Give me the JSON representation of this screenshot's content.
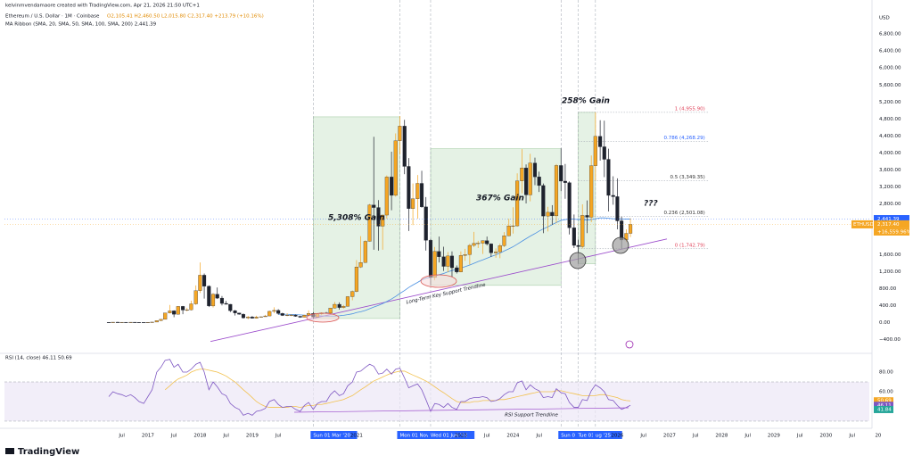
{
  "chart_data": {
    "type": "candlestick",
    "credit": "kelvinmvendamaore created with TradingView.com, Apr 21, 2026 21:50 UTC+1",
    "symbol_line": "Ethereum / U.S. Dollar · 1M · Coinbase",
    "ohlc_line": "O2,105.41 H2,460.50 L2,015.80 C2,317.40 +213.79 (+10.16%)",
    "ma_line": "MA Ribbon (SMA, 20, SMA, 50, SMA, 100, SMA, 200) 2,441.39",
    "currency": "USD",
    "up_color": "#f5a623",
    "down_color": "#1e222d",
    "xlim": [
      2014.25,
      2030.83
    ],
    "ylim": [
      -700,
      7350
    ],
    "grid": false,
    "candles": {
      "x": [
        2016.25,
        2016.33,
        2016.42,
        2016.5,
        2016.58,
        2016.67,
        2016.75,
        2016.83,
        2016.92,
        2017,
        2017.08,
        2017.17,
        2017.25,
        2017.33,
        2017.42,
        2017.5,
        2017.58,
        2017.67,
        2017.75,
        2017.83,
        2017.92,
        2018,
        2018.08,
        2018.17,
        2018.25,
        2018.33,
        2018.42,
        2018.5,
        2018.58,
        2018.67,
        2018.75,
        2018.83,
        2018.92,
        2019,
        2019.08,
        2019.17,
        2019.25,
        2019.33,
        2019.42,
        2019.5,
        2019.58,
        2019.67,
        2019.75,
        2019.83,
        2019.92,
        2020,
        2020.08,
        2020.17,
        2020.25,
        2020.33,
        2020.42,
        2020.5,
        2020.58,
        2020.67,
        2020.75,
        2020.83,
        2020.92,
        2021,
        2021.08,
        2021.17,
        2021.25,
        2021.33,
        2021.42,
        2021.5,
        2021.58,
        2021.67,
        2021.75,
        2021.83,
        2021.92,
        2022,
        2022.08,
        2022.17,
        2022.25,
        2022.33,
        2022.42,
        2022.5,
        2022.58,
        2022.67,
        2022.75,
        2022.83,
        2022.92,
        2023,
        2023.08,
        2023.17,
        2023.25,
        2023.33,
        2023.42,
        2023.5,
        2023.58,
        2023.67,
        2023.75,
        2023.83,
        2023.92,
        2024,
        2024.08,
        2024.17,
        2024.25,
        2024.33,
        2024.42,
        2024.5,
        2024.58,
        2024.67,
        2024.75,
        2024.83,
        2024.92,
        2025,
        2025.08,
        2025.17,
        2025.25,
        2025.33,
        2025.42,
        2025.5,
        2025.58,
        2025.67,
        2025.75,
        2025.83,
        2025.92,
        2026,
        2026.08,
        2026.17,
        2026.25
      ],
      "open": [
        11,
        9,
        14,
        12,
        12,
        11,
        13,
        11,
        9,
        8,
        11,
        16,
        50,
        80,
        230,
        280,
        200,
        385,
        300,
        305,
        445,
        755,
        1120,
        860,
        395,
        670,
        580,
        455,
        435,
        285,
        230,
        200,
        115,
        135,
        107,
        135,
        141,
        160,
        268,
        290,
        218,
        172,
        180,
        182,
        152,
        130,
        179,
        218,
        133,
        206,
        231,
        226,
        345,
        434,
        359,
        386,
        615,
        737,
        1314,
        1419,
        1918,
        2773,
        2714,
        2275,
        2536,
        3433,
        3001,
        4288,
        4631,
        3683,
        2688,
        2919,
        3283,
        2729,
        1942,
        1067,
        1679,
        1553,
        1328,
        1573,
        1296,
        1196,
        1585,
        1605,
        1822,
        1870,
        1875,
        1934,
        1857,
        1646,
        1671,
        1815,
        2047,
        2282,
        2283,
        3340,
        3646,
        3012,
        3762,
        3437,
        3232,
        2513,
        2602,
        2518,
        3704,
        3336,
        3300,
        2237,
        1822,
        1793,
        2528,
        2486,
        3698,
        4390,
        4145,
        3850,
        3000,
        2970,
        2400,
        1950,
        2105.41
      ],
      "high": [
        12,
        15,
        21,
        15,
        12,
        14,
        14,
        12,
        9,
        12,
        17,
        55,
        80,
        232,
        420,
        294,
        390,
        395,
        352,
        520,
        880,
        1420,
        1160,
        880,
        700,
        830,
        630,
        515,
        440,
        300,
        235,
        220,
        160,
        160,
        165,
        145,
        185,
        285,
        365,
        320,
        235,
        225,
        200,
        195,
        155,
        185,
        290,
        253,
        225,
        245,
        255,
        350,
        490,
        480,
        420,
        625,
        760,
        1475,
        2040,
        1945,
        2800,
        4380,
        2890,
        2550,
        3470,
        4030,
        4460,
        4870,
        4780,
        3880,
        3280,
        3480,
        3580,
        2960,
        1975,
        1785,
        2030,
        1790,
        1665,
        1680,
        1350,
        1680,
        1740,
        1860,
        2140,
        1930,
        1940,
        2030,
        1870,
        1750,
        1865,
        2135,
        2450,
        2720,
        3520,
        4090,
        3730,
        3980,
        3890,
        3560,
        3280,
        2730,
        2770,
        3740,
        4110,
        3740,
        3330,
        2550,
        1960,
        2790,
        2880,
        3940,
        4955.9,
        4770,
        4760,
        4100,
        3450,
        3400,
        2500,
        2200,
        2460.5
      ],
      "low": [
        7,
        9,
        11,
        10,
        10,
        11,
        10,
        8,
        6,
        8,
        10,
        16,
        42,
        78,
        220,
        130,
        190,
        200,
        270,
        290,
        420,
        700,
        570,
        370,
        360,
        560,
        410,
        430,
        250,
        170,
        190,
        100,
        82,
        100,
        102,
        124,
        140,
        155,
        225,
        190,
        160,
        155,
        155,
        140,
        117,
        127,
        175,
        90,
        130,
        180,
        215,
        220,
        335,
        310,
        335,
        380,
        530,
        715,
        1290,
        1410,
        1910,
        1720,
        1700,
        1720,
        2450,
        2650,
        2970,
        3970,
        3500,
        2160,
        2300,
        2450,
        2710,
        1700,
        880,
        1000,
        1420,
        1220,
        1190,
        1075,
        1160,
        1190,
        1460,
        1370,
        1780,
        1760,
        1620,
        1820,
        1550,
        1530,
        1520,
        1780,
        2040,
        2100,
        2260,
        3050,
        2810,
        2860,
        3240,
        3080,
        2110,
        2150,
        2310,
        2350,
        3100,
        2920,
        2080,
        1760,
        1390,
        1750,
        2110,
        2370,
        3350,
        3820,
        3430,
        2620,
        2780,
        2200,
        1742.79,
        1900,
        2015.8
      ],
      "close": [
        9,
        14,
        12,
        12,
        11,
        13,
        11,
        9,
        8,
        11,
        16,
        50,
        80,
        230,
        280,
        200,
        385,
        300,
        305,
        445,
        755,
        1120,
        860,
        395,
        670,
        580,
        455,
        435,
        285,
        230,
        200,
        115,
        135,
        107,
        135,
        141,
        160,
        268,
        290,
        218,
        172,
        180,
        182,
        152,
        130,
        179,
        218,
        133,
        206,
        231,
        226,
        345,
        434,
        359,
        386,
        615,
        737,
        1314,
        1419,
        1918,
        2773,
        2714,
        2275,
        2536,
        3433,
        3001,
        4288,
        4631,
        3683,
        2688,
        2919,
        3283,
        2729,
        1942,
        1067,
        1679,
        1553,
        1328,
        1573,
        1296,
        1196,
        1585,
        1605,
        1822,
        1870,
        1875,
        1934,
        1857,
        1646,
        1671,
        1815,
        2047,
        2282,
        2283,
        3340,
        3646,
        3012,
        3762,
        3437,
        3232,
        2513,
        2602,
        2518,
        3704,
        3336,
        3300,
        2237,
        1822,
        1793,
        2528,
        2486,
        3698,
        4390,
        4145,
        3850,
        3000,
        2970,
        2400,
        1950,
        2105.41,
        2317.4
      ]
    },
    "ma_ribbon": {
      "color": "#4a90e2",
      "values": [
        null,
        null,
        null,
        null,
        null,
        null,
        null,
        null,
        null,
        null,
        null,
        null,
        null,
        null,
        null,
        null,
        null,
        null,
        null,
        null,
        null,
        null,
        null,
        null,
        null,
        null,
        null,
        null,
        null,
        null,
        null,
        null,
        null,
        null,
        null,
        null,
        null,
        null,
        null,
        200,
        200,
        198,
        195,
        190,
        185,
        180,
        175,
        170,
        165,
        160,
        158,
        156,
        158,
        165,
        175,
        190,
        210,
        240,
        260,
        290,
        330,
        370,
        410,
        450,
        500,
        560,
        620,
        690,
        760,
        830,
        890,
        950,
        1010,
        1050,
        1070,
        1100,
        1130,
        1160,
        1200,
        1230,
        1260,
        1290,
        1320,
        1360,
        1400,
        1440,
        1480,
        1520,
        1560,
        1600,
        1640,
        1690,
        1740,
        1790,
        1850,
        1920,
        1980,
        2040,
        2100,
        2160,
        2210,
        2260,
        2310,
        2360,
        2410,
        2430,
        2440,
        2440,
        2430,
        2430,
        2420,
        2430,
        2450,
        2470,
        2470,
        2460,
        2450,
        2450,
        2445,
        2443,
        2441.39
      ]
    },
    "yticks": [
      {
        "value": 6800,
        "label": "6,800.00"
      },
      {
        "value": 6400,
        "label": "6,400.00"
      },
      {
        "value": 6000,
        "label": "6,000.00"
      },
      {
        "value": 5600,
        "label": "5,600.00"
      },
      {
        "value": 5200,
        "label": "5,200.00"
      },
      {
        "value": 4800,
        "label": "4,800.00"
      },
      {
        "value": 4400,
        "label": "4,400.00"
      },
      {
        "value": 4000,
        "label": "4,000.00"
      },
      {
        "value": 3600,
        "label": "3,600.00"
      },
      {
        "value": 3200,
        "label": "3,200.00"
      },
      {
        "value": 2800,
        "label": "2,800.00"
      },
      {
        "value": 1600,
        "label": "1,600.00"
      },
      {
        "value": 1200,
        "label": "1,200.00"
      },
      {
        "value": 800,
        "label": "800.00"
      },
      {
        "value": 400,
        "label": "400.00"
      },
      {
        "value": 0,
        "label": "0.00"
      },
      {
        "value": -400,
        "label": "−400.00"
      }
    ],
    "xticks": [
      {
        "value": 2016.5,
        "label": "Jul"
      },
      2017,
      {
        "value": 2017.5,
        "label": "Jul"
      },
      2018,
      {
        "value": 2018.5,
        "label": "Jul"
      },
      2019,
      {
        "value": 2019.5,
        "label": "Jul"
      },
      2021,
      2023,
      {
        "value": 2023.5,
        "label": "Jul"
      },
      2024,
      {
        "value": 2024.5,
        "label": "Jul"
      },
      2026,
      {
        "value": 2026.5,
        "label": "Jul"
      },
      2027,
      {
        "value": 2027.5,
        "label": "Jul"
      },
      2028,
      {
        "value": 2028.5,
        "label": "Jul"
      },
      2029,
      {
        "value": 2029.5,
        "label": "Jul"
      },
      2030,
      {
        "value": 2030.5,
        "label": "Jul"
      },
      {
        "value": 2031,
        "label": "20"
      }
    ],
    "markers": [
      {
        "x": 2020.17,
        "label": "Sun 01 Mar '20"
      },
      {
        "x": 2021.83,
        "label": "Mon 01 Nov"
      },
      {
        "x": 2022.42,
        "label": "Wed 01 Jun '22"
      },
      {
        "x": 2024.92,
        "label": "Sun 01"
      },
      {
        "x": 2025.25,
        "label": "Tue 01 Apr '25"
      },
      {
        "x": 2025.58,
        "label": "ug '25"
      }
    ],
    "boxes": [
      {
        "x": [
          2020.17,
          2021.83
        ],
        "y": [
          100,
          4850
        ]
      },
      {
        "x": [
          2022.42,
          2024.92
        ],
        "y": [
          880,
          4100
        ]
      },
      {
        "x": [
          2025.25,
          2025.58
        ],
        "y": [
          1390,
          4955.9
        ]
      }
    ],
    "fib": {
      "x": [
        2025.25,
        2027.75
      ],
      "levels": [
        {
          "label": "1 (4,955.90)",
          "value": 4955.9,
          "color": "#e0445b"
        },
        {
          "label": "0.786 (4,268.29)",
          "value": 4268.29,
          "color": "#2962ff"
        },
        {
          "label": "0.5 (3,349.35)",
          "value": 3349.35,
          "color": "#333333"
        },
        {
          "label": "0.236 (2,501.08)",
          "value": 2501.08,
          "color": "#333333"
        },
        {
          "label": "0 (1,742.79)",
          "value": 1742.79,
          "color": "#e0445b"
        }
      ]
    },
    "trendline": {
      "label": "Long-Term Key Support Trendline",
      "color": "#9c4dcc",
      "x": [
        2018.2,
        2026.95
      ],
      "y": [
        -441,
        1973
      ]
    },
    "annotations": [
      "5,308% Gain",
      "367% Gain",
      "258% Gain",
      "???"
    ],
    "price_tags": [
      {
        "label": "2,441.39",
        "value": 2441.39,
        "color": "#2962ff"
      },
      {
        "label": "2,317.40",
        "value": 2317.4,
        "color": "#f5a623"
      }
    ],
    "symbol_tag": "ETHUSD",
    "change_label": "+16,559.96%",
    "rsi": {
      "title": "RSI (14, close) 46.11 50.69",
      "ylim": [
        24.5,
        95.5
      ],
      "band": [
        30,
        70
      ],
      "color": "#7e57c2",
      "ma_color": "#f2c14e",
      "yticks": [
        {
          "value": 80,
          "label": "80.00"
        },
        {
          "value": 60,
          "label": "60.00"
        }
      ],
      "tags": [
        {
          "label": "50.69",
          "value": 50.69,
          "color": "#f5a623"
        },
        {
          "label": "46.11",
          "value": 46.11,
          "color": "#7e57c2"
        },
        {
          "label": "41.84",
          "value": 41.84,
          "color": "#26a69a"
        }
      ],
      "support_label": "RSI Support Trendline",
      "values": [
        55,
        60,
        58,
        57,
        55,
        57,
        54,
        50,
        48,
        55,
        62,
        80,
        85,
        92,
        93,
        85,
        88,
        80,
        80,
        83,
        88,
        90,
        80,
        62,
        70,
        65,
        58,
        56,
        48,
        44,
        42,
        36,
        38,
        36,
        40,
        41,
        43,
        50,
        52,
        47,
        44,
        45,
        45,
        42,
        40,
        46,
        49,
        42,
        48,
        50,
        50,
        57,
        61,
        56,
        58,
        66,
        70,
        80,
        81,
        85,
        88,
        86,
        78,
        79,
        83,
        78,
        83,
        84,
        74,
        64,
        66,
        68,
        62,
        52,
        40,
        48,
        47,
        44,
        48,
        44,
        42,
        50,
        50,
        53,
        54,
        54,
        55,
        54,
        50,
        51,
        53,
        57,
        60,
        60,
        69,
        71,
        62,
        67,
        63,
        61,
        54,
        55,
        54,
        63,
        59,
        58,
        49,
        44,
        44,
        52,
        51,
        61,
        67,
        64,
        60,
        52,
        51,
        46,
        42,
        44,
        46.11
      ],
      "ma": [
        null,
        null,
        null,
        null,
        null,
        null,
        null,
        null,
        null,
        null,
        null,
        null,
        null,
        62,
        66,
        70,
        73,
        75,
        77,
        80,
        82,
        83,
        83,
        82,
        81,
        80,
        78,
        76,
        73,
        70,
        66,
        62,
        58,
        54,
        50,
        47,
        45,
        44,
        44,
        44,
        44,
        44,
        45,
        45,
        44,
        45,
        46,
        46,
        47,
        47,
        48,
        49,
        50,
        51,
        52,
        54,
        56,
        59,
        62,
        65,
        68,
        71,
        73,
        75,
        77,
        79,
        80,
        81,
        81,
        79,
        77,
        75,
        73,
        71,
        68,
        65,
        62,
        59,
        56,
        53,
        50,
        49,
        49,
        49,
        50,
        50,
        51,
        51,
        51,
        51,
        52,
        52,
        53,
        54,
        55,
        56,
        57,
        58,
        59,
        60,
        60,
        60,
        60,
        61,
        61,
        60,
        59,
        58,
        57,
        56,
        56,
        56,
        56,
        57,
        57,
        56,
        55,
        54,
        52,
        51,
        50.69
      ]
    },
    "brand": "TradingView"
  }
}
